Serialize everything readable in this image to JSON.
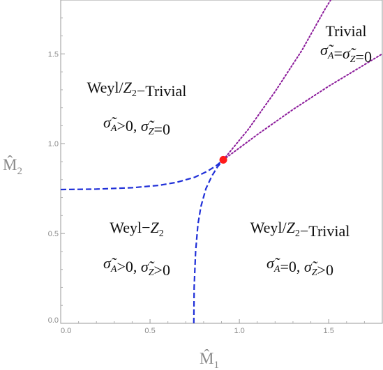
{
  "chart_data": {
    "type": "line",
    "xlabel": {
      "base": "M̂",
      "sub": "1"
    },
    "ylabel": {
      "base": "M̂",
      "sub": "2"
    },
    "xlim": [
      0,
      1.8
    ],
    "ylim": [
      0,
      1.8
    ],
    "x_ticks": [
      {
        "value": 0.0,
        "label": "0.0"
      },
      {
        "value": 0.5,
        "label": "0.5"
      },
      {
        "value": 1.0,
        "label": "1.0"
      },
      {
        "value": 1.5,
        "label": "1.5"
      }
    ],
    "y_ticks": [
      {
        "value": 0.0,
        "label": "0.0"
      },
      {
        "value": 0.5,
        "label": "0.5"
      },
      {
        "value": 1.0,
        "label": "1.0"
      },
      {
        "value": 1.5,
        "label": "1.5"
      }
    ],
    "series": [
      {
        "style": "dashed",
        "color": "#1f2fd8",
        "x": [
          0.0,
          0.2,
          0.4,
          0.55,
          0.65,
          0.75,
          0.82,
          0.87,
          0.91
        ],
        "y": [
          0.745,
          0.747,
          0.755,
          0.768,
          0.785,
          0.813,
          0.846,
          0.877,
          0.91
        ]
      },
      {
        "style": "dashed",
        "color": "#1f2fd8",
        "x": [
          0.745,
          0.747,
          0.755,
          0.768,
          0.785,
          0.813,
          0.846,
          0.877,
          0.91
        ],
        "y": [
          0.0,
          0.2,
          0.4,
          0.55,
          0.65,
          0.75,
          0.82,
          0.87,
          0.91
        ]
      },
      {
        "style": "dotted",
        "color": "#8b1a9a",
        "x": [
          0.91,
          1.05,
          1.2,
          1.35,
          1.48,
          1.53
        ],
        "y": [
          0.91,
          1.08,
          1.29,
          1.52,
          1.75,
          1.83
        ]
      },
      {
        "style": "dotted",
        "color": "#8b1a9a",
        "x": [
          0.91,
          1.1,
          1.3,
          1.5,
          1.7,
          1.8
        ],
        "y": [
          0.91,
          1.05,
          1.19,
          1.32,
          1.44,
          1.5
        ]
      }
    ],
    "point": {
      "x": 0.91,
      "y": 0.91,
      "color": "#ff1a1a"
    },
    "annotations": [
      {
        "line1": [
          {
            "t": "Weyl/"
          },
          {
            "t": "Z",
            "i": true
          },
          {
            "t": "2",
            "sub": true
          },
          {
            "t": "−Trivial"
          }
        ],
        "line2": [
          {
            "t": "σ̃",
            "i": true
          },
          {
            "t": "A",
            "i": true,
            "sub": true
          },
          {
            "t": ">0,  "
          },
          {
            "t": "σ̃",
            "i": true
          },
          {
            "t": "Z",
            "i": true,
            "sub": true
          },
          {
            "t": "=0"
          }
        ]
      },
      {
        "line1": [
          {
            "t": "Weyl−"
          },
          {
            "t": "Z",
            "i": true
          },
          {
            "t": "2",
            "sub": true
          }
        ],
        "line2": [
          {
            "t": "σ̃",
            "i": true
          },
          {
            "t": "A",
            "i": true,
            "sub": true
          },
          {
            "t": ">0,  "
          },
          {
            "t": "σ̃",
            "i": true
          },
          {
            "t": "Z",
            "i": true,
            "sub": true
          },
          {
            "t": ">0"
          }
        ]
      },
      {
        "line1": [
          {
            "t": "Weyl/"
          },
          {
            "t": "Z",
            "i": true
          },
          {
            "t": "2",
            "sub": true
          },
          {
            "t": "−Trivial"
          }
        ],
        "line2": [
          {
            "t": "σ̃",
            "i": true
          },
          {
            "t": "A",
            "i": true,
            "sub": true
          },
          {
            "t": "=0,  "
          },
          {
            "t": "σ̃",
            "i": true
          },
          {
            "t": "Z",
            "i": true,
            "sub": true
          },
          {
            "t": ">0"
          }
        ]
      },
      {
        "line1": [
          {
            "t": "Trivial"
          }
        ],
        "line2": [
          {
            "t": "σ̃",
            "i": true
          },
          {
            "t": "A",
            "i": true,
            "sub": true
          },
          {
            "t": "="
          },
          {
            "t": "σ̃",
            "i": true
          },
          {
            "t": "Z",
            "i": true,
            "sub": true
          },
          {
            "t": "=0"
          }
        ]
      }
    ]
  }
}
